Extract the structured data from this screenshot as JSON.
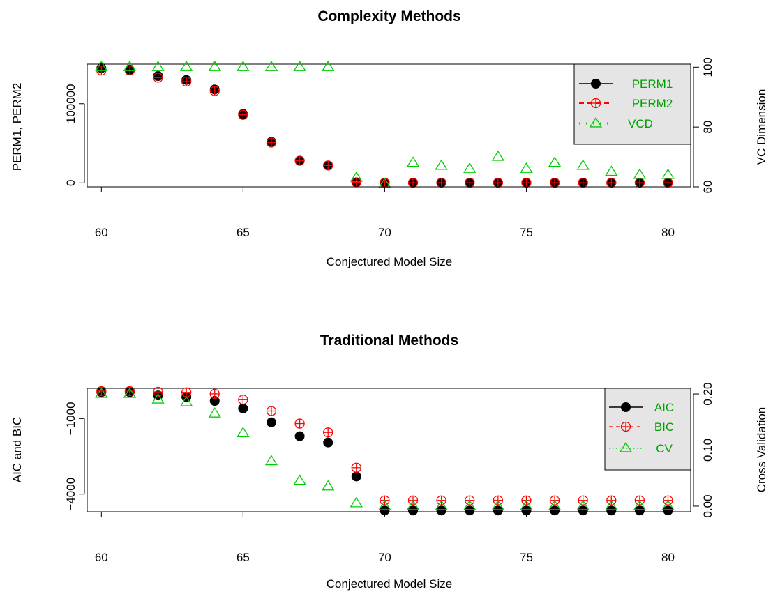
{
  "colors": {
    "black": "#000000",
    "red": "#ff0000",
    "green": "#00cd00",
    "legend_bg": "#e5e5e5"
  },
  "chart_data": [
    {
      "type": "scatter",
      "title": "Complexity Methods",
      "xlabel": "Conjectured Model Size",
      "ylabel": "PERM1, PERM2",
      "ylabel_right": "VC Dimension",
      "xlim": [
        59.5,
        80.8
      ],
      "ylim": [
        -5000,
        150000
      ],
      "ylim_right": [
        60.0,
        101.0
      ],
      "x_ticks": [
        60,
        65,
        70,
        75,
        80
      ],
      "y_ticks": [
        0,
        100000
      ],
      "y_ticks_right": [
        60,
        80,
        100
      ],
      "legend_position": "top-right",
      "x": [
        60,
        61,
        62,
        63,
        64,
        65,
        66,
        67,
        68,
        69,
        70,
        71,
        72,
        73,
        74,
        75,
        76,
        77,
        78,
        79,
        80
      ],
      "series": [
        {
          "name": "PERM1",
          "axis": "left",
          "color": "#000000",
          "marker": "filled-circle",
          "values": [
            145000,
            143000,
            135000,
            130000,
            118000,
            87000,
            52000,
            28000,
            22000,
            700,
            300,
            300,
            300,
            300,
            300,
            300,
            300,
            300,
            300,
            300,
            300
          ]
        },
        {
          "name": "PERM2",
          "axis": "left",
          "color": "#ff0000",
          "marker": "circle-plus",
          "values": [
            142000,
            142000,
            133000,
            128000,
            116000,
            86000,
            51000,
            28000,
            22000,
            600,
            200,
            200,
            200,
            200,
            200,
            200,
            200,
            200,
            200,
            200,
            200
          ]
        },
        {
          "name": "VCD",
          "axis": "right",
          "color": "#00cd00",
          "marker": "triangle",
          "values": [
            100,
            100,
            100,
            100,
            100,
            100,
            100,
            100,
            100,
            63,
            61,
            68,
            67,
            66,
            70,
            66,
            68,
            67,
            65,
            64,
            64
          ]
        }
      ]
    },
    {
      "type": "scatter",
      "title": "Traditional Methods",
      "xlabel": "Conjectured Model Size",
      "ylabel": "AIC and BIC",
      "ylabel_right": "Cross Validation",
      "xlim": [
        59.5,
        80.8
      ],
      "ylim": [
        -4700,
        200
      ],
      "ylim_right": [
        -0.01,
        0.21
      ],
      "x_ticks": [
        60,
        65,
        70,
        75,
        80
      ],
      "y_ticks": [
        -4000,
        -1000
      ],
      "y_ticks_right": [
        0.0,
        0.1,
        0.2
      ],
      "y_tick_labels_right": [
        "0.00",
        "0.10",
        "0.20"
      ],
      "legend_position": "top-right",
      "x": [
        60,
        61,
        62,
        63,
        64,
        65,
        66,
        67,
        68,
        69,
        70,
        71,
        72,
        73,
        74,
        75,
        76,
        77,
        78,
        79,
        80
      ],
      "series": [
        {
          "name": "AIC",
          "axis": "left",
          "color": "#000000",
          "marker": "filled-circle",
          "values": [
            50,
            50,
            -80,
            -150,
            -300,
            -600,
            -1150,
            -1700,
            -1950,
            -3300,
            -4650,
            -4650,
            -4650,
            -4650,
            -4650,
            -4650,
            -4650,
            -4650,
            -4650,
            -4650,
            -4650
          ]
        },
        {
          "name": "BIC",
          "axis": "left",
          "color": "#ff0000",
          "marker": "circle-plus",
          "values": [
            90,
            90,
            60,
            40,
            -20,
            -250,
            -700,
            -1200,
            -1550,
            -2950,
            -4250,
            -4250,
            -4250,
            -4250,
            -4250,
            -4250,
            -4250,
            -4250,
            -4250,
            -4250,
            -4250
          ]
        },
        {
          "name": "CV",
          "axis": "right",
          "color": "#00cd00",
          "marker": "triangle",
          "values": [
            0.2,
            0.2,
            0.19,
            0.185,
            0.165,
            0.13,
            0.08,
            0.045,
            0.035,
            0.005,
            0.0,
            0.0,
            0.0,
            0.0,
            0.0,
            0.0,
            0.0,
            0.0,
            0.0,
            0.0,
            0.0
          ]
        }
      ]
    }
  ]
}
